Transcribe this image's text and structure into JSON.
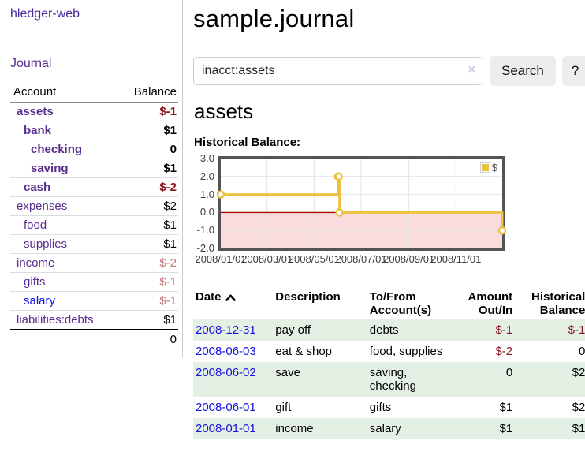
{
  "colors": {
    "accent_gold": "#edc240",
    "negative_strong": "#8e1620",
    "negative_soft": "#c4757d",
    "link_purple": "#5a2d90",
    "link_blue": "#1512e0",
    "row_green": "#e3f0e3",
    "below_zero_fill": "#fbdcdc",
    "zero_line": "#aa0000",
    "chart_border": "#545454",
    "grid": "#e4e4e4"
  },
  "sidebar": {
    "app_title": "hledger-web",
    "nav": {
      "journal": "Journal"
    },
    "accounts": {
      "col_account": "Account",
      "col_balance": "Balance",
      "rows": [
        {
          "name": "assets",
          "balance": "$-1"
        },
        {
          "name": "bank",
          "balance": "$1"
        },
        {
          "name": "checking",
          "balance": "0"
        },
        {
          "name": "saving",
          "balance": "$1"
        },
        {
          "name": "cash",
          "balance": "$-2"
        },
        {
          "name": "expenses",
          "balance": "$2"
        },
        {
          "name": "food",
          "balance": "$1"
        },
        {
          "name": "supplies",
          "balance": "$1"
        },
        {
          "name": "income",
          "balance": "$-2"
        },
        {
          "name": "gifts",
          "balance": "$-1"
        },
        {
          "name": "salary",
          "balance": "$-1"
        },
        {
          "name": "liabilities:debts",
          "balance": "$1"
        }
      ],
      "total": "0"
    }
  },
  "main": {
    "title": "sample.journal",
    "search": {
      "value": "inacct:assets",
      "clear_icon": "×",
      "search_label": "Search",
      "help_label": "?"
    },
    "account_heading": "assets",
    "chart_heading": "Historical Balance:"
  },
  "chart_data": {
    "type": "line",
    "title": "Historical Balance",
    "steps": true,
    "legend_position": "top-right",
    "series": [
      {
        "name": "$",
        "color": "#edc240",
        "points": [
          [
            "2008-01-01",
            1
          ],
          [
            "2008-06-01",
            2
          ],
          [
            "2008-06-02",
            2
          ],
          [
            "2008-06-03",
            0
          ],
          [
            "2008-12-31",
            -1
          ]
        ]
      }
    ],
    "x_range": [
      "2008-01-01",
      "2008-12-31"
    ],
    "ylim": [
      -2,
      3
    ],
    "y_ticks": [
      {
        "label": "3.0",
        "value": 3
      },
      {
        "label": "2.0",
        "value": 2
      },
      {
        "label": "1.0",
        "value": 1
      },
      {
        "label": "0.0",
        "value": 0
      },
      {
        "label": "-1.0",
        "value": -1
      },
      {
        "label": "-2.0",
        "value": -2
      }
    ],
    "x_ticks": [
      {
        "label": "2008/01/01",
        "date": "2008-01-01"
      },
      {
        "label": "2008/03/01",
        "date": "2008-03-01"
      },
      {
        "label": "2008/05/01",
        "date": "2008-05-01"
      },
      {
        "label": "2008/07/01",
        "date": "2008-07-01"
      },
      {
        "label": "2008/09/01",
        "date": "2008-09-01"
      },
      {
        "label": "2008/11/01",
        "date": "2008-11-01"
      }
    ],
    "grid": true,
    "below_zero_shaded": true
  },
  "register": {
    "headers": {
      "date": "Date",
      "description": "Description",
      "accounts": "To/From Account(s)",
      "amount": "Amount Out/In",
      "balance": "Historical Balance"
    },
    "rows": [
      {
        "date": "2008-12-31",
        "description": "pay off",
        "accounts": "debts",
        "amount": "$-1",
        "balance": "$-1"
      },
      {
        "date": "2008-06-03",
        "description": "eat & shop",
        "accounts": "food, supplies",
        "amount": "$-2",
        "balance": "0"
      },
      {
        "date": "2008-06-02",
        "description": "save",
        "accounts": "saving, checking",
        "amount": "0",
        "balance": "$2"
      },
      {
        "date": "2008-06-01",
        "description": "gift",
        "accounts": "gifts",
        "amount": "$1",
        "balance": "$2"
      },
      {
        "date": "2008-01-01",
        "description": "income",
        "accounts": "salary",
        "amount": "$1",
        "balance": "$1"
      }
    ]
  }
}
